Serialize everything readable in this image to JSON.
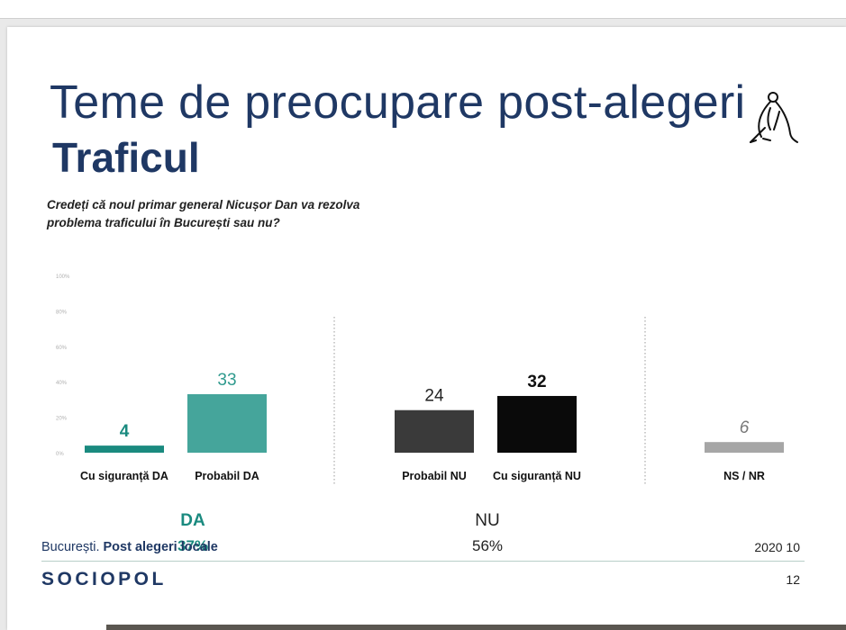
{
  "slide": {
    "title": "Teme de preocupare post-alegeri",
    "subtitle": "Traficul",
    "question_line1": "Credeți că noul primar general Nicușor Dan va rezolva",
    "question_line2": "problema traficului în București sau nu?",
    "footer_location": "București.",
    "footer_study": "Post alegeri locale",
    "footer_date": "2020 10",
    "brand": "SOCIOPOL",
    "page_number": "12"
  },
  "chart_data": {
    "type": "bar",
    "ylim": [
      0,
      100
    ],
    "y_ticks": [
      "0%",
      "20%",
      "40%",
      "60%",
      "80%",
      "100%"
    ],
    "grid": false,
    "categories": [
      "Cu siguranță DA",
      "Probabil DA",
      "Probabil NU",
      "Cu siguranță NU",
      "NS / NR"
    ],
    "values": [
      4,
      33,
      24,
      32,
      6
    ],
    "bar_colors": [
      "#1a8a7f",
      "#45a59b",
      "#3a3a3a",
      "#0a0a0a",
      "#a6a6a6"
    ],
    "label_colors": [
      "#1a8a7f",
      "#2f9a8e",
      "#222222",
      "#111111",
      "#777777"
    ],
    "groups": [
      {
        "label": "DA",
        "total": "37%",
        "color": "#1a8a7f"
      },
      {
        "label": "NU",
        "total": "56%",
        "color": "#222222"
      }
    ]
  }
}
